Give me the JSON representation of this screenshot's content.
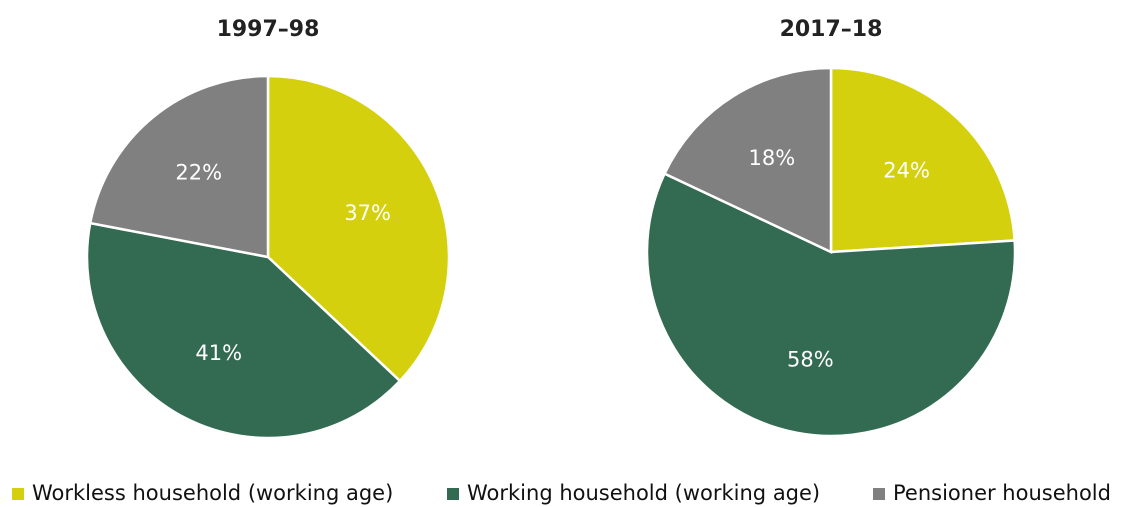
{
  "chart_data": [
    {
      "type": "pie",
      "title": "1997–98",
      "values": [
        37,
        41,
        22
      ],
      "value_labels": [
        "37%",
        "41%",
        "22%"
      ]
    },
    {
      "type": "pie",
      "title": "2017–18",
      "values": [
        24,
        58,
        18
      ],
      "value_labels": [
        "24%",
        "58%",
        "18%"
      ]
    }
  ],
  "legend": [
    {
      "name": "Workless household (working age)",
      "color": "#d4d00d"
    },
    {
      "name": "Working household (working age)",
      "color": "#336a52"
    },
    {
      "name": "Pensioner household",
      "color": "#808080"
    }
  ]
}
